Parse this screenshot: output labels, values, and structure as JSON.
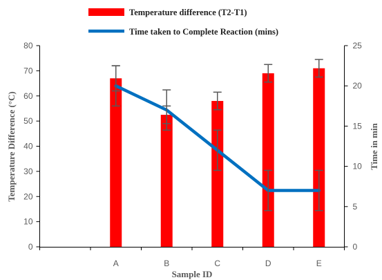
{
  "chart_data": {
    "type": "bar",
    "categories": [
      "",
      "A",
      "B",
      "C",
      "D",
      "E"
    ],
    "series": [
      {
        "name": "Temperature difference (T2-T1)",
        "type": "bar",
        "axis": "left",
        "color": "#ff0000",
        "values": [
          null,
          67,
          52.5,
          58,
          69,
          71
        ],
        "error": [
          null,
          5,
          3.5,
          3.5,
          3.5,
          3.5
        ]
      },
      {
        "name": "Time taken to Complete Reaction (mins)",
        "type": "line",
        "axis": "right",
        "color": "#0070c0",
        "values": [
          null,
          20,
          17,
          12,
          7,
          7
        ],
        "error": [
          null,
          2.5,
          2.5,
          2.5,
          2.5,
          2.5
        ]
      }
    ],
    "xlabel": "Sample ID",
    "ylabel": "Temperature Difference (°C)",
    "y2label": "Time in min",
    "ylim": [
      0,
      80
    ],
    "y2lim": [
      0,
      25
    ],
    "yticks": [
      "0",
      "10",
      "20",
      "30",
      "40",
      "50",
      "60",
      "70",
      "80"
    ],
    "y2ticks": [
      "0",
      "5",
      "10",
      "15",
      "20",
      "25"
    ],
    "legend_position": "top",
    "grid": false,
    "errorbar_color": "#595959"
  }
}
